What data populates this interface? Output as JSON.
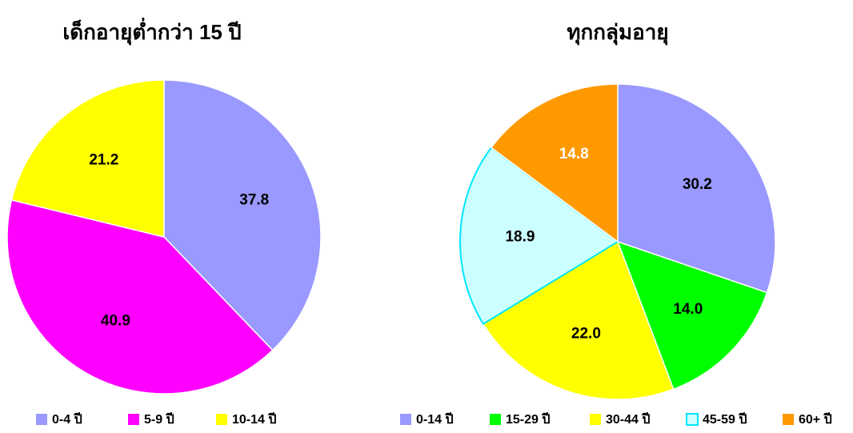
{
  "chart_data": [
    {
      "type": "pie",
      "title": "เด็กอายุต่ำกว่า 15 ปี",
      "categories": [
        "0-4 ปี",
        "5-9 ปี",
        "10-14 ปี"
      ],
      "values": [
        37.8,
        40.9,
        21.2
      ],
      "value_labels": [
        "37.8",
        "40.9",
        "21.2"
      ],
      "colors": [
        "#9999ff",
        "#ff00ff",
        "#ffff00"
      ],
      "label_colors": [
        "#000000",
        "#000000",
        "#000000"
      ],
      "legend": "bottom"
    },
    {
      "type": "pie",
      "title": "ทุกกลุ่มอายุ",
      "categories": [
        "0-14 ปี",
        "15-29 ปี",
        "30-44 ปี",
        "45-59 ปี",
        "60+ ปี"
      ],
      "values": [
        30.2,
        14.0,
        22.0,
        18.9,
        14.8
      ],
      "value_labels": [
        "30.2",
        "14.0",
        "22.0",
        "18.9",
        "14.8"
      ],
      "colors": [
        "#9999ff",
        "#00ff00",
        "#ffff00",
        "#ccffff",
        "#ff9900"
      ],
      "label_colors": [
        "#000000",
        "#000000",
        "#000000",
        "#000000",
        "#ffffff"
      ],
      "legend": "bottom"
    }
  ]
}
